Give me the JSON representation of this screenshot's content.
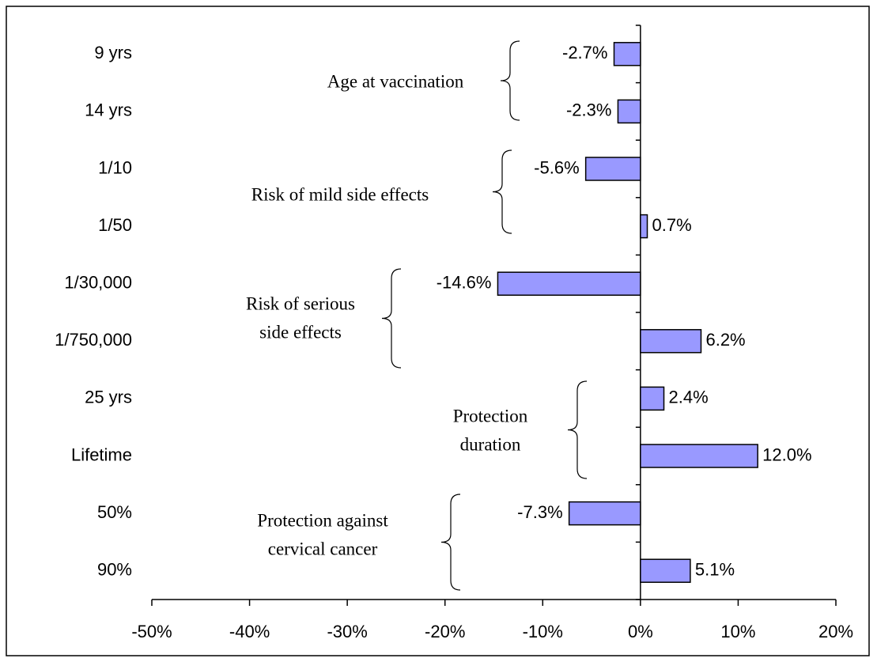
{
  "chart_data": {
    "type": "barh",
    "categories": [
      "9 yrs",
      "14 yrs",
      "1/10",
      "1/50",
      "1/30,000",
      "1/750,000",
      "25 yrs",
      "Lifetime",
      "50%",
      "90%"
    ],
    "values": [
      -2.7,
      -2.3,
      -5.6,
      0.7,
      -14.6,
      6.2,
      2.4,
      12.0,
      -7.3,
      5.1
    ],
    "value_labels": [
      "-2.7%",
      "-2.3%",
      "-5.6%",
      "0.7%",
      "-14.6%",
      "6.2%",
      "2.4%",
      "12.0%",
      "-7.3%",
      "5.1%"
    ],
    "color": "#9999ff",
    "xlim": [
      -50,
      20
    ],
    "xticks": [
      {
        "value": -50,
        "label": "-50%"
      },
      {
        "value": -40,
        "label": "-40%"
      },
      {
        "value": -30,
        "label": "-30%"
      },
      {
        "value": -20,
        "label": "-20%"
      },
      {
        "value": -10,
        "label": "-10%"
      },
      {
        "value": 0,
        "label": "0%"
      },
      {
        "value": 10,
        "label": "10%"
      },
      {
        "value": 20,
        "label": "20%"
      }
    ],
    "annotations": [
      {
        "lines": [
          "Age at vaccination"
        ]
      },
      {
        "lines": [
          "Risk of mild side effects"
        ]
      },
      {
        "lines": [
          "Risk of serious",
          "side effects"
        ]
      },
      {
        "lines": [
          "Protection",
          "duration"
        ]
      },
      {
        "lines": [
          "Protection against",
          "cervical cancer"
        ]
      }
    ]
  }
}
